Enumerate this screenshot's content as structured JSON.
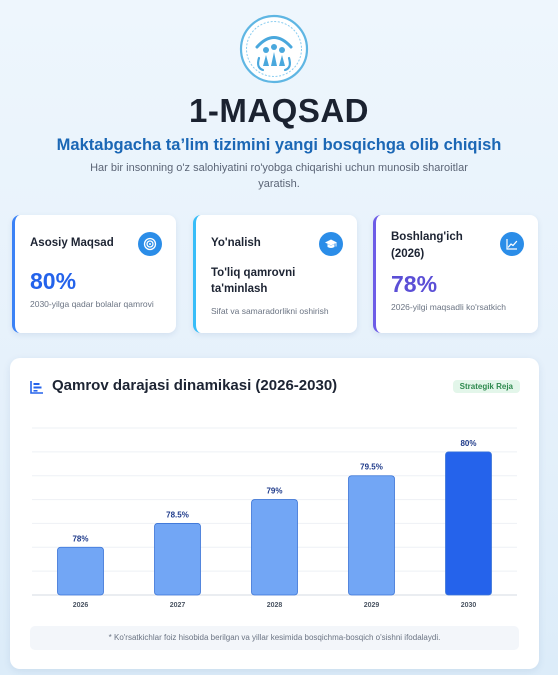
{
  "header": {
    "logo_icon": "kindergarten-emblem-icon",
    "title": "1-MAQSAD",
    "subtitle": "Maktabgacha ta’lim tizimini yangi bosqichga olib chiqish",
    "description": "Har bir insonning o'z salohiyatini ro'yobga chiqarishi uchun munosib sharoitlar yaratish."
  },
  "cards": [
    {
      "title": "Asosiy Maqsad",
      "icon": "target-icon",
      "value": "80%",
      "note": "2030-yilga qadar bolalar qamrovi",
      "accent": "#3b82f6"
    },
    {
      "title": "Yo'nalish",
      "icon": "graduation-cap-icon",
      "value": "To'liq qamrovni ta'minlash",
      "note": "Sifat va samaradorlikni oshirish",
      "accent": "#38bdf8"
    },
    {
      "title": "Boshlang'ich (2026)",
      "icon": "line-chart-icon",
      "value": "78%",
      "note": "2026-yilgi maqsadli ko'rsatkich",
      "accent": "#6d5ce7"
    }
  ],
  "chart_section": {
    "icon": "bar-chart-icon",
    "title": "Qamrov darajasi dinamikasi (2026-2030)",
    "badge": "Strategik Reja",
    "footnote": "* Ko'rsatkichlar foiz hisobida berilgan va yillar kesimida bosqichma-bosqich o'sishni ifodalaydi."
  },
  "chart_data": {
    "type": "bar",
    "title": "Qamrov darajasi dinamikasi (2026-2030)",
    "categories": [
      "2026",
      "2027",
      "2028",
      "2029",
      "2030"
    ],
    "values": [
      78,
      78.5,
      79,
      79.5,
      80
    ],
    "data_labels": [
      "78%",
      "78.5%",
      "79%",
      "79.5%",
      "80%"
    ],
    "xlabel": "",
    "ylabel": "",
    "ylim": [
      77,
      80.5
    ],
    "grid": true,
    "colors": [
      "#72a6f5",
      "#72a6f5",
      "#72a6f5",
      "#72a6f5",
      "#2563eb"
    ],
    "bar_border": "#3b74d6"
  }
}
